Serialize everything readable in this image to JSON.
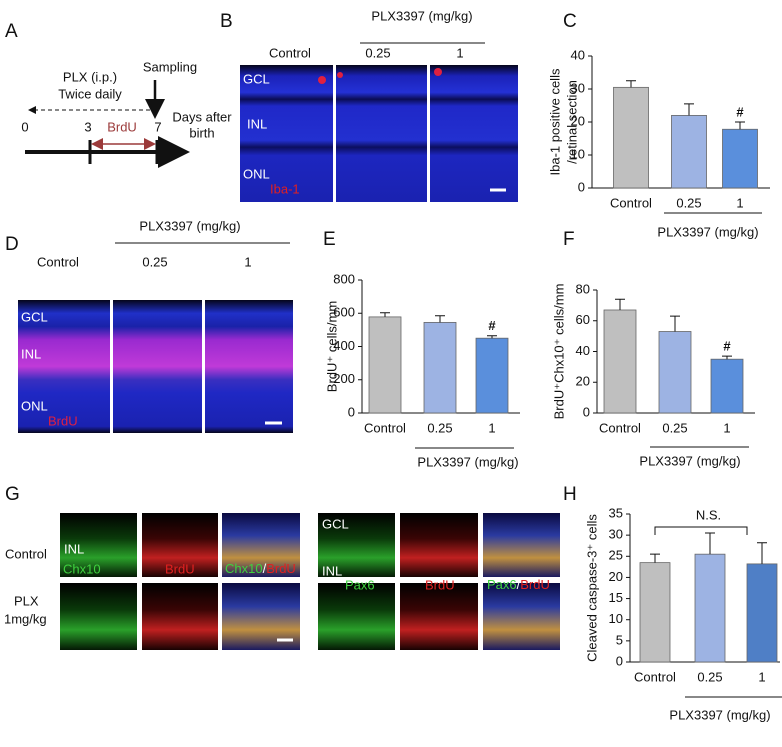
{
  "panels": {
    "labels": [
      "A",
      "B",
      "C",
      "D",
      "E",
      "F",
      "G",
      "H"
    ]
  },
  "timeline": {
    "regimen": [
      "PLX (i.p.)",
      "Twice daily"
    ],
    "sampling": "Sampling",
    "axis_label": [
      "Days after",
      "birth"
    ],
    "days": [
      "0",
      "3",
      "7"
    ],
    "pulse": "BrdU"
  },
  "panel_b": {
    "group": "PLX3397 (mg/kg)",
    "columns": [
      "Control",
      "0.25",
      "1"
    ],
    "layers": [
      "GCL",
      "INL",
      "ONL"
    ],
    "stain": "Iba-1"
  },
  "panel_d": {
    "group": "PLX3397 (mg/kg)",
    "columns": [
      "Control",
      "0.25",
      "1"
    ],
    "layers": [
      "GCL",
      "INL",
      "ONL"
    ],
    "stain": "BrdU"
  },
  "panel_g": {
    "rows": [
      "Control",
      "PLX",
      "1mg/kg"
    ],
    "left_layer": "INL",
    "left_stains": [
      "Chx10",
      "BrdU",
      "Chx10",
      "/",
      "BrdU"
    ],
    "right_layers": [
      "GCL",
      "INL"
    ],
    "right_stains": [
      "Pax6",
      "BrdU",
      "Pax6",
      "/",
      "BrdU"
    ]
  },
  "chart_data": [
    {
      "type": "bar",
      "y_label": [
        "Iba-1 positive cells",
        "/retinal section"
      ],
      "categories": [
        "Control",
        "0.25",
        "1"
      ],
      "values": [
        30.5,
        22,
        17.8
      ],
      "errors": [
        2,
        3.5,
        2.2
      ],
      "colors": [
        "#bfbfbf",
        "#9db3e3",
        "#5a8fdc"
      ],
      "ylim": [
        0,
        40
      ],
      "yticks": [
        0,
        10,
        20,
        30,
        40
      ],
      "group_label": "PLX3397 (mg/kg)",
      "annotation": "#"
    },
    {
      "type": "bar",
      "y_label": [
        "BrdU⁺ cells/mm"
      ],
      "categories": [
        "Control",
        "0.25",
        "1"
      ],
      "values": [
        578,
        545,
        450
      ],
      "errors": [
        25,
        40,
        15
      ],
      "colors": [
        "#bfbfbf",
        "#9db3e3",
        "#5a8fdc"
      ],
      "ylim": [
        0,
        800
      ],
      "yticks": [
        0,
        200,
        400,
        600,
        800
      ],
      "group_label": "PLX3397 (mg/kg)",
      "annotation": "#"
    },
    {
      "type": "bar",
      "y_label": [
        "BrdU⁺Chx10⁺ cells/mm"
      ],
      "categories": [
        "Control",
        "0.25",
        "1"
      ],
      "values": [
        67,
        53,
        35
      ],
      "errors": [
        7,
        10,
        2
      ],
      "colors": [
        "#bfbfbf",
        "#9db3e3",
        "#5a8fdc"
      ],
      "ylim": [
        0,
        80
      ],
      "yticks": [
        0,
        20,
        40,
        60,
        80
      ],
      "group_label": "PLX3397 (mg/kg)",
      "annotation": "#"
    },
    {
      "type": "bar",
      "y_label": [
        "Cleaved caspase-3⁺ cells"
      ],
      "categories": [
        "Control",
        "0.25",
        "1"
      ],
      "values": [
        23.5,
        25.5,
        23.2
      ],
      "errors": [
        2,
        5,
        5
      ],
      "colors": [
        "#bfbfbf",
        "#9db3e3",
        "#4f7fc6"
      ],
      "ylim": [
        0,
        35
      ],
      "yticks": [
        0,
        5,
        10,
        15,
        20,
        25,
        30,
        35
      ],
      "group_label": "PLX3397 (mg/kg)",
      "annotation": "N.S."
    }
  ]
}
